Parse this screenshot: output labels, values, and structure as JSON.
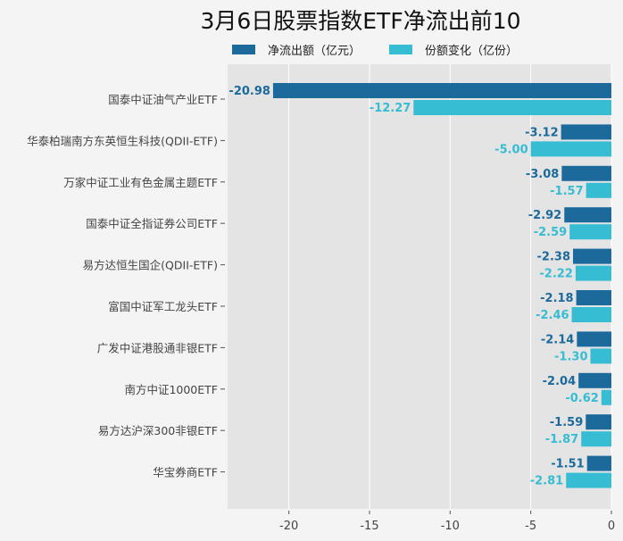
{
  "chart_data": {
    "type": "bar",
    "orientation": "horizontal",
    "title": "3月6日股票指数ETF净流出前10",
    "categories": [
      "国泰中证油气产业ETF",
      "华泰柏瑞南方东英恒生科技(QDII-ETF)",
      "万家中证工业有色金属主题ETF",
      "国泰中证全指证券公司ETF",
      "易方达恒生国企(QDII-ETF)",
      "富国中证军工龙头ETF",
      "广发中证港股通非银ETF",
      "南方中证1000ETF",
      "易方达沪深300非银ETF",
      "华宝券商ETF"
    ],
    "series": [
      {
        "name": "净流出额（亿元）",
        "color": "#1c6a9c",
        "values": [
          -20.98,
          -3.12,
          -3.08,
          -2.92,
          -2.38,
          -2.18,
          -2.14,
          -2.04,
          -1.59,
          -1.51
        ]
      },
      {
        "name": "份额变化（亿份）",
        "color": "#36bcd3",
        "values": [
          -12.27,
          -5.0,
          -1.57,
          -2.59,
          -2.22,
          -2.46,
          -1.3,
          -0.62,
          -1.87,
          -2.81
        ]
      }
    ],
    "xticks": [
      "-20",
      "-15",
      "-10",
      "-5",
      "0"
    ],
    "xtick_values": [
      -20,
      -15,
      -10,
      -5,
      0
    ],
    "xlim": [
      -23.8,
      0
    ],
    "grid": true,
    "legend_position": "top",
    "xlabel": "",
    "ylabel": ""
  }
}
